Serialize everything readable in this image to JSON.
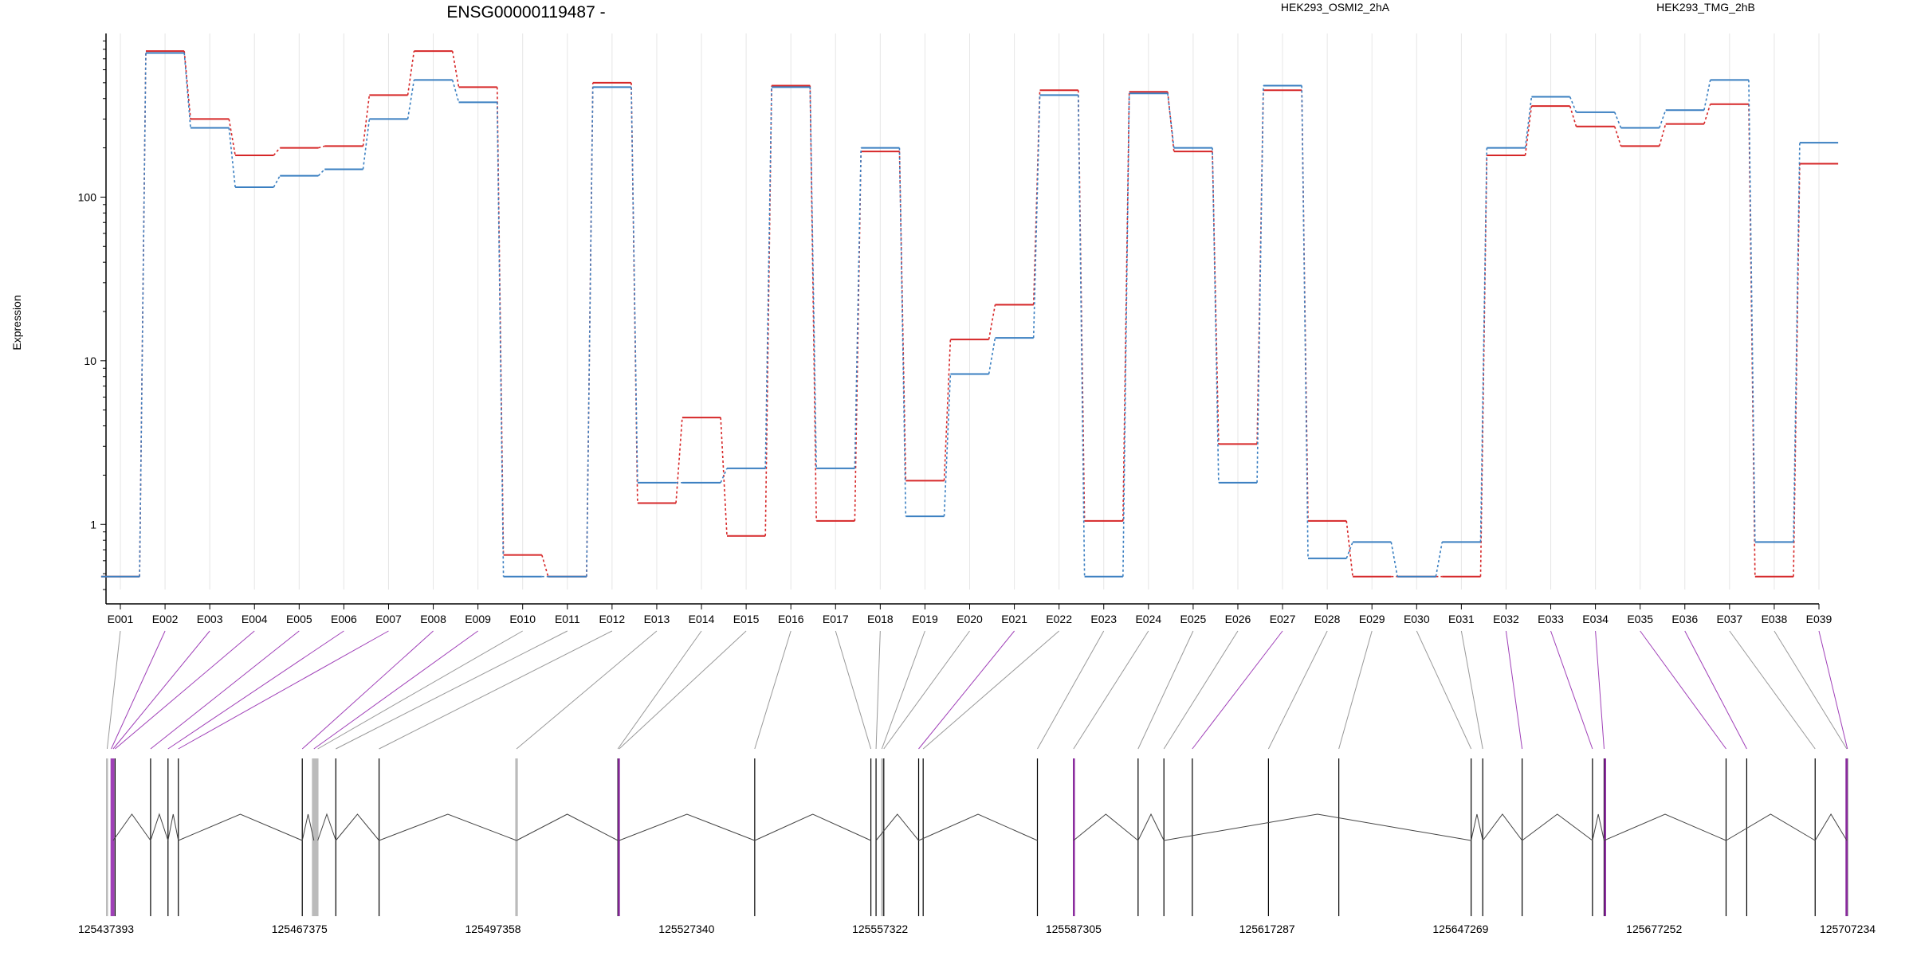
{
  "chart_data": {
    "type": "line",
    "title": "ENSG00000119487 -",
    "ylabel": "Expression",
    "yscale": "log",
    "ylim": [
      0.4,
      1000
    ],
    "y_ticks": [
      "1",
      "10",
      "100"
    ],
    "y_tick_values": [
      1,
      10,
      100
    ],
    "categories": [
      "E001",
      "E002",
      "E003",
      "E004",
      "E005",
      "E006",
      "E007",
      "E008",
      "E009",
      "E010",
      "E011",
      "E012",
      "E013",
      "E014",
      "E015",
      "E016",
      "E017",
      "E018",
      "E019",
      "E020",
      "E021",
      "E022",
      "E023",
      "E024",
      "E025",
      "E026",
      "E027",
      "E028",
      "E029",
      "E030",
      "E031",
      "E032",
      "E033",
      "E034",
      "E035",
      "E036",
      "E037",
      "E038",
      "E039"
    ],
    "legend_placement": "top",
    "series": [
      {
        "name": "HEK293_OSMI2_2hA",
        "color": "#d62728",
        "values": [
          0.48,
          780,
          300,
          180,
          200,
          205,
          420,
          780,
          470,
          0.65,
          0.48,
          500,
          1.35,
          4.5,
          0.85,
          480,
          1.05,
          190,
          1.85,
          13.5,
          22,
          450,
          1.05,
          440,
          190,
          3.1,
          450,
          1.05,
          0.48,
          0.48,
          0.48,
          180,
          360,
          270,
          205,
          280,
          370,
          0.48,
          160
        ]
      },
      {
        "name": "HEK293_TMG_2hB",
        "color": "#3a7fc1",
        "values": [
          0.48,
          760,
          265,
          115,
          135,
          148,
          300,
          520,
          380,
          0.48,
          0.48,
          470,
          1.8,
          1.8,
          2.2,
          470,
          2.2,
          200,
          1.12,
          8.3,
          13.8,
          420,
          0.48,
          430,
          200,
          1.8,
          480,
          0.62,
          0.78,
          0.48,
          0.78,
          200,
          410,
          330,
          265,
          340,
          520,
          0.78,
          215
        ]
      }
    ],
    "gene_model": {
      "coordinate_ticks": [
        "125437393",
        "125467375",
        "125497358",
        "125527340",
        "125557322",
        "125587305",
        "125617287",
        "125647269",
        "125677252",
        "125707234"
      ],
      "coordinate_tick_values": [
        125437393,
        125467375,
        125497358,
        125527340,
        125557322,
        125587305,
        125617287,
        125647269,
        125677252,
        125707234
      ],
      "exon_link_color_default": "#999999",
      "exon_link_color_significant": "#a040b8",
      "exon_positions": [
        125437570,
        125438200,
        125438500,
        125438800,
        125444300,
        125447000,
        125448600,
        125467800,
        125469600,
        125470200,
        125473000,
        125479700,
        125501000,
        125516700,
        125516900,
        125537900,
        125555900,
        125556700,
        125557600,
        125557900,
        125563300,
        125564000,
        125581700,
        125587300,
        125597300,
        125601300,
        125605700,
        125617500,
        125628400,
        125648900,
        125650700,
        125656800,
        125667700,
        125669500,
        125688400,
        125691600,
        125702200,
        125707100,
        125707200
      ],
      "significant_exons": [
        "E002",
        "E003",
        "E004",
        "E005",
        "E006",
        "E007",
        "E008",
        "E009",
        "E021",
        "E027",
        "E032",
        "E033",
        "E034",
        "E035",
        "E036",
        "E039"
      ],
      "introns": [
        [
          125438500,
          125444300
        ],
        [
          125444300,
          125447000
        ],
        [
          125447000,
          125448600
        ],
        [
          125448600,
          125467800
        ],
        [
          125467800,
          125469600
        ],
        [
          125470200,
          125473000
        ],
        [
          125473000,
          125479700
        ],
        [
          125479700,
          125501000
        ],
        [
          125501000,
          125516700
        ],
        [
          125516900,
          125537900
        ],
        [
          125537900,
          125555900
        ],
        [
          125556700,
          125563300
        ],
        [
          125563300,
          125581700
        ],
        [
          125587300,
          125597300
        ],
        [
          125597300,
          125601300
        ],
        [
          125601300,
          125648900
        ],
        [
          125648900,
          125650700
        ],
        [
          125650700,
          125656800
        ],
        [
          125656800,
          125667700
        ],
        [
          125667700,
          125669500
        ],
        [
          125669500,
          125688400
        ],
        [
          125688400,
          125702200
        ],
        [
          125702200,
          125707100
        ]
      ],
      "thick_exons": [
        [
          125437393,
          125437600,
          "#bbbbbb"
        ],
        [
          125438100,
          125438700,
          "#a040b8"
        ],
        [
          125469300,
          125470300,
          "#bbbbbb"
        ],
        [
          125500800,
          125501200,
          "#bbbbbb"
        ],
        [
          125516700,
          125516950,
          "#8a2a9e"
        ],
        [
          125557500,
          125557800,
          "#bbbbbb"
        ],
        [
          125587200,
          125587400,
          "#8a2a9e"
        ],
        [
          125669500,
          125669800,
          "#8a2a9e"
        ],
        [
          125706900,
          125707234,
          "#8a2a9e"
        ]
      ]
    }
  }
}
